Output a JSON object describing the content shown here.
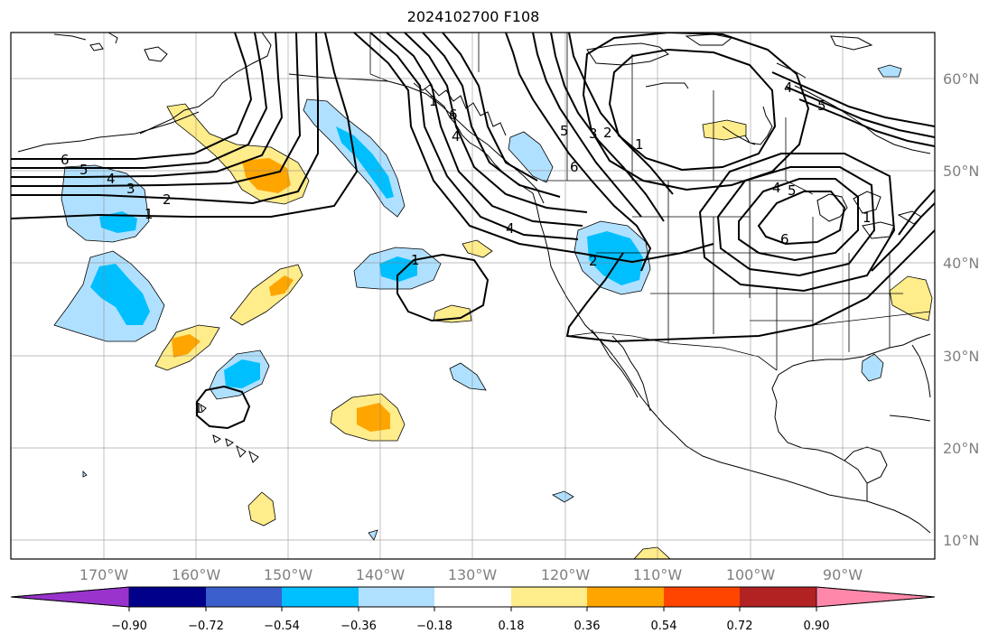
{
  "title": "2024102700 F108",
  "map": {
    "lon_labels": [
      "170°W",
      "160°W",
      "150°W",
      "140°W",
      "130°W",
      "120°W",
      "110°W",
      "100°W",
      "90°W"
    ],
    "lat_labels": [
      "60°N",
      "50°N",
      "40°N",
      "30°N",
      "20°N",
      "10°N"
    ],
    "contour_labels": [
      "6",
      "5",
      "4",
      "3",
      "2",
      "1",
      "1",
      "1",
      "4",
      "2",
      "5",
      "3",
      "2",
      "1",
      "6",
      "6",
      "4",
      "5",
      "6",
      "4",
      "1",
      "4",
      "5",
      "1"
    ]
  },
  "colorbar": {
    "colors": [
      "#9933cc",
      "#00008b",
      "#3a5fcd",
      "#00bfff",
      "#b0e0ff",
      "#ffffff",
      "#ffec8b",
      "#ffa500",
      "#ff4500",
      "#b22222",
      "#ff88aa"
    ],
    "tick_labels": [
      "−0.90",
      "−0.72",
      "−0.54",
      "−0.36",
      "−0.18",
      "0.18",
      "0.36",
      "0.54",
      "0.72",
      "0.90"
    ]
  },
  "fill_colors": {
    "light_blue": "#b0e0ff",
    "blue": "#00bfff",
    "yellow": "#ffec8b",
    "orange": "#ffa500"
  }
}
